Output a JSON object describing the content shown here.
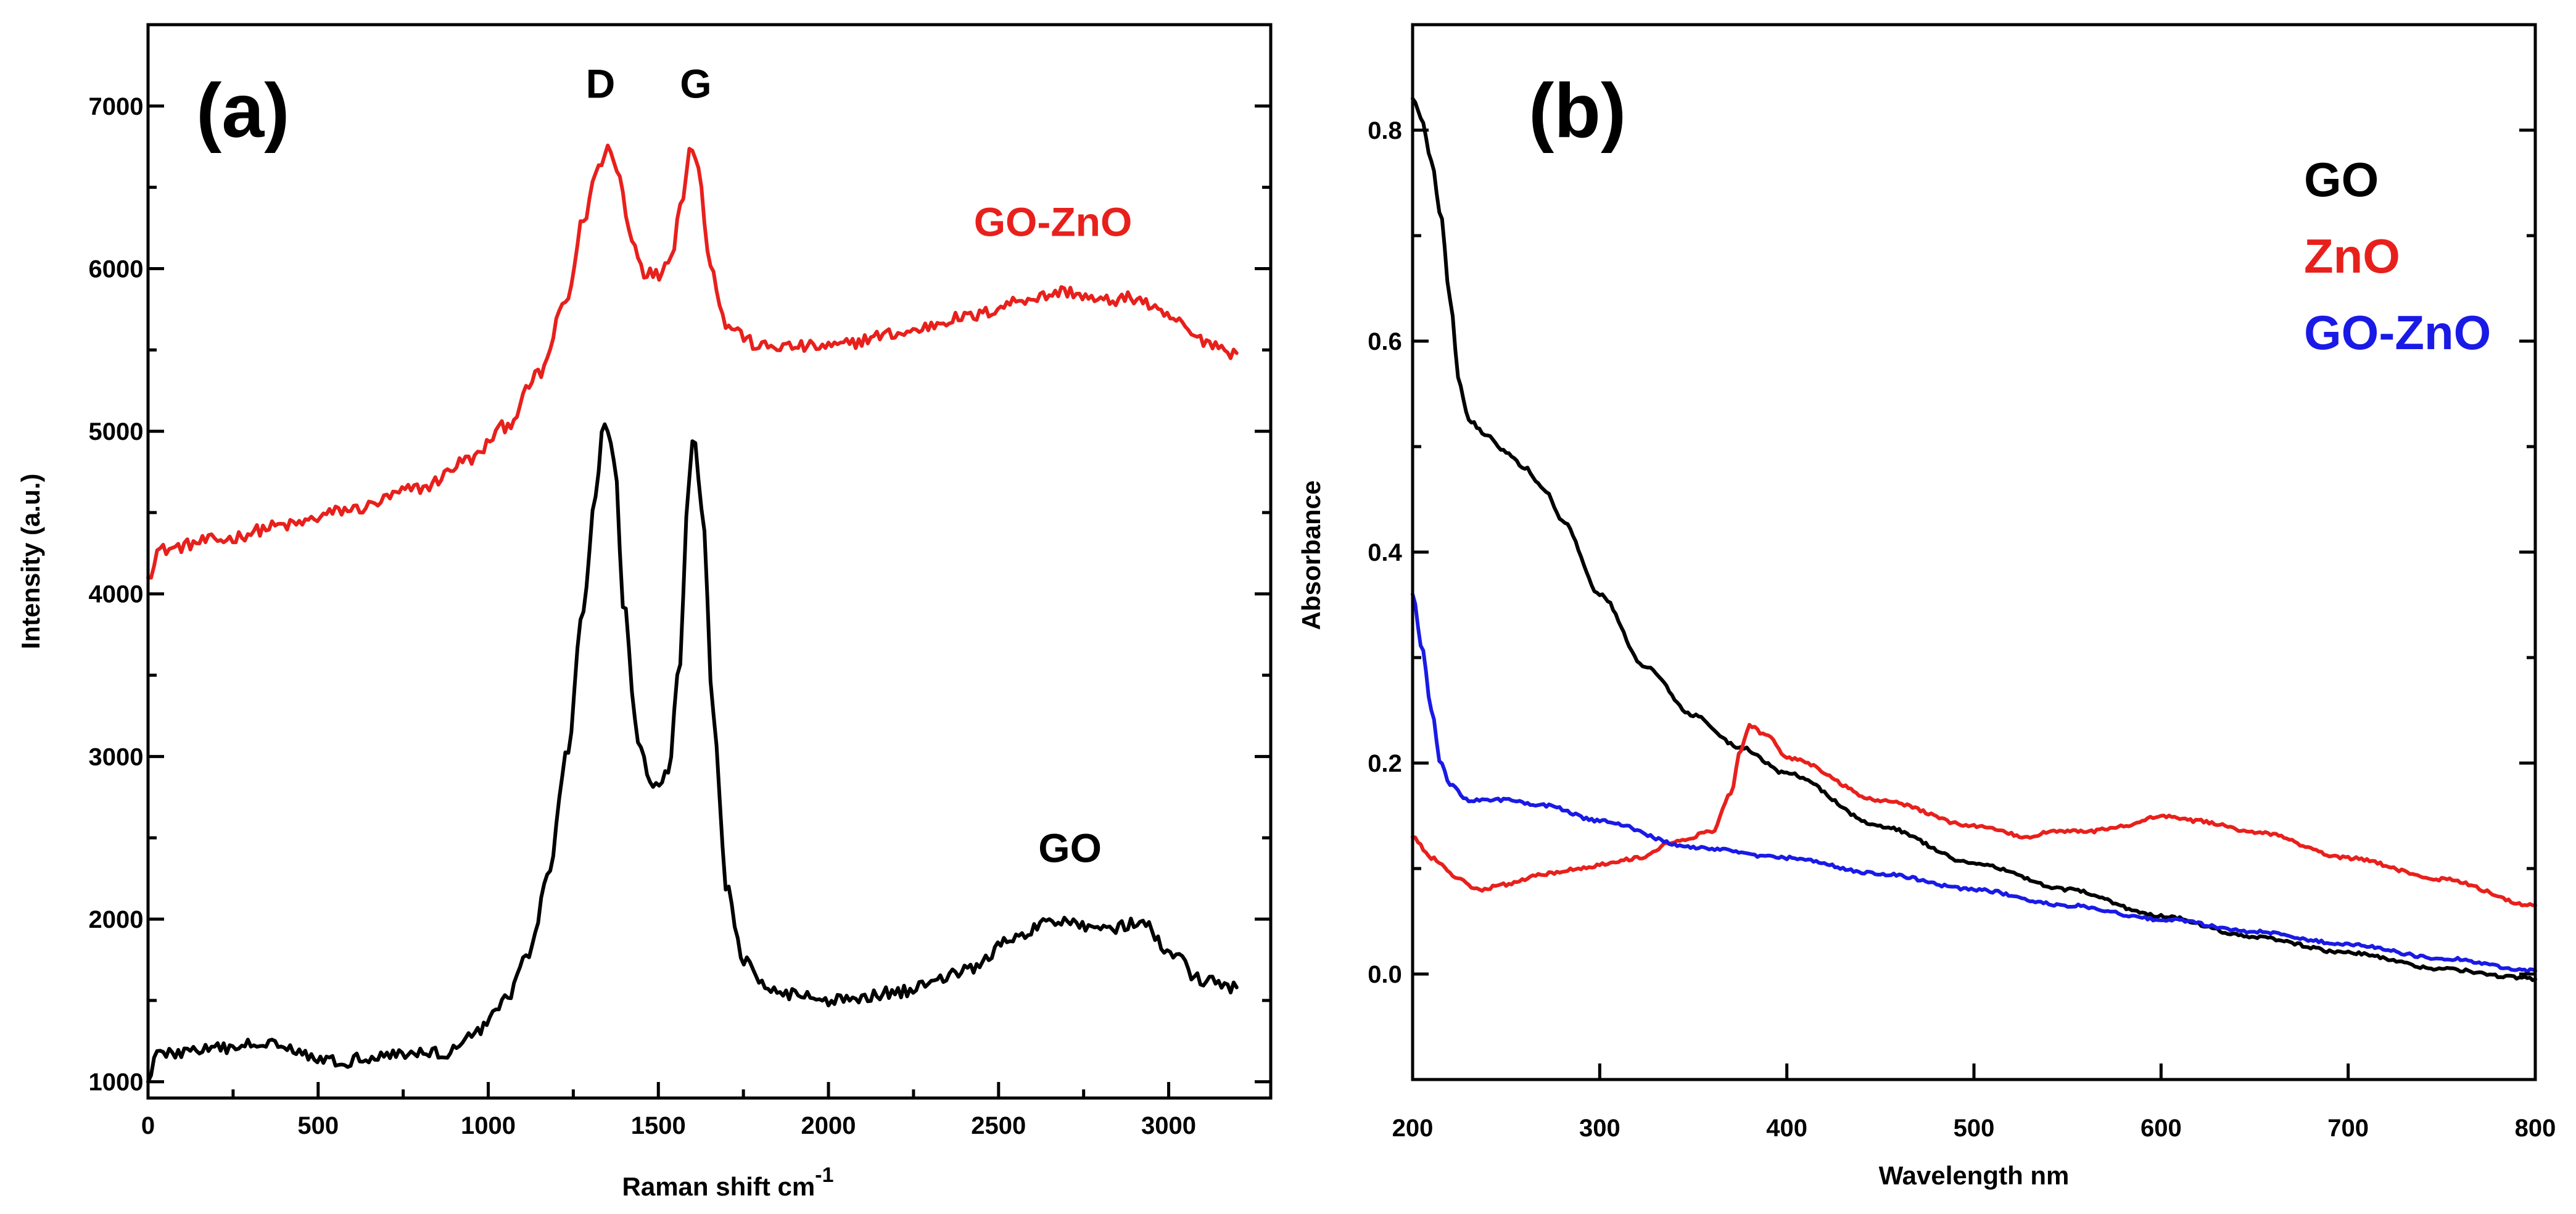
{
  "chart_data": [
    {
      "panel_label": "(a)",
      "type": "line",
      "title": "",
      "xlabel": "Raman shift cm",
      "xlabel_superscript": "-1",
      "ylabel": "Intensity (a.u.)",
      "xlim": [
        0,
        3300
      ],
      "ylim": [
        900,
        7500
      ],
      "xticks": [
        0,
        500,
        1000,
        1500,
        2000,
        2500,
        3000
      ],
      "yticks": [
        1000,
        2000,
        3000,
        4000,
        5000,
        6000,
        7000
      ],
      "noise_amplitude": 38,
      "series": [
        {
          "name": "GO-ZnO",
          "color": "#e8201c",
          "points": [
            [
              0,
              4100
            ],
            [
              30,
              4270
            ],
            [
              200,
              4330
            ],
            [
              400,
              4420
            ],
            [
              600,
              4520
            ],
            [
              800,
              4650
            ],
            [
              950,
              4830
            ],
            [
              1050,
              5030
            ],
            [
              1150,
              5350
            ],
            [
              1230,
              5800
            ],
            [
              1280,
              6300
            ],
            [
              1320,
              6600
            ],
            [
              1350,
              6750
            ],
            [
              1380,
              6600
            ],
            [
              1420,
              6200
            ],
            [
              1460,
              5980
            ],
            [
              1500,
              5960
            ],
            [
              1540,
              6100
            ],
            [
              1570,
              6450
            ],
            [
              1595,
              6750
            ],
            [
              1620,
              6600
            ],
            [
              1650,
              6050
            ],
            [
              1700,
              5650
            ],
            [
              1800,
              5520
            ],
            [
              2000,
              5520
            ],
            [
              2200,
              5600
            ],
            [
              2400,
              5700
            ],
            [
              2600,
              5820
            ],
            [
              2700,
              5860
            ],
            [
              2800,
              5800
            ],
            [
              2900,
              5820
            ],
            [
              3000,
              5700
            ],
            [
              3100,
              5560
            ],
            [
              3200,
              5480
            ]
          ]
        },
        {
          "name": "GO",
          "color": "#000000",
          "points": [
            [
              0,
              1000
            ],
            [
              20,
              1170
            ],
            [
              200,
              1200
            ],
            [
              380,
              1250
            ],
            [
              450,
              1180
            ],
            [
              550,
              1120
            ],
            [
              700,
              1170
            ],
            [
              880,
              1180
            ],
            [
              950,
              1280
            ],
            [
              1050,
              1500
            ],
            [
              1120,
              1800
            ],
            [
              1180,
              2300
            ],
            [
              1230,
              3000
            ],
            [
              1280,
              3900
            ],
            [
              1315,
              4600
            ],
            [
              1340,
              5080
            ],
            [
              1370,
              4850
            ],
            [
              1400,
              3900
            ],
            [
              1440,
              3100
            ],
            [
              1480,
              2800
            ],
            [
              1530,
              2900
            ],
            [
              1560,
              3500
            ],
            [
              1590,
              4700
            ],
            [
              1605,
              4980
            ],
            [
              1630,
              4500
            ],
            [
              1660,
              3300
            ],
            [
              1700,
              2200
            ],
            [
              1750,
              1750
            ],
            [
              1800,
              1600
            ],
            [
              1900,
              1540
            ],
            [
              2000,
              1500
            ],
            [
              2200,
              1550
            ],
            [
              2400,
              1680
            ],
            [
              2550,
              1880
            ],
            [
              2650,
              1980
            ],
            [
              2700,
              2000
            ],
            [
              2780,
              1950
            ],
            [
              2850,
              1950
            ],
            [
              2920,
              1980
            ],
            [
              3000,
              1800
            ],
            [
              3100,
              1620
            ],
            [
              3200,
              1580
            ]
          ]
        }
      ],
      "annotations": [
        {
          "text": "D",
          "x": 1330,
          "y": 7050,
          "color": "#000000"
        },
        {
          "text": "G",
          "x": 1610,
          "y": 7050,
          "color": "#000000"
        },
        {
          "text": "GO-ZnO",
          "x": 2660,
          "y": 6200,
          "color": "#e8201c"
        },
        {
          "text": "GO",
          "x": 2710,
          "y": 2350,
          "color": "#000000"
        }
      ]
    },
    {
      "panel_label": "(b)",
      "type": "line",
      "title": "",
      "xlabel": "Wavelength nm",
      "ylabel": "Absorbance",
      "xlim": [
        200,
        800
      ],
      "ylim": [
        -0.1,
        0.9
      ],
      "xticks": [
        200,
        300,
        400,
        500,
        600,
        700,
        800
      ],
      "yticks": [
        0.0,
        0.2,
        0.4,
        0.6,
        0.8
      ],
      "ytick_labels": [
        "0.0",
        "0.2",
        "0.4",
        "0.6",
        "0.8"
      ],
      "noise_amplitude": 0.0015,
      "series": [
        {
          "name": "GO",
          "color": "#000000",
          "points": [
            [
              200,
              0.83
            ],
            [
              205,
              0.81
            ],
            [
              210,
              0.77
            ],
            [
              215,
              0.72
            ],
            [
              220,
              0.64
            ],
            [
              225,
              0.56
            ],
            [
              230,
              0.525
            ],
            [
              240,
              0.51
            ],
            [
              250,
              0.495
            ],
            [
              260,
              0.48
            ],
            [
              270,
              0.46
            ],
            [
              280,
              0.43
            ],
            [
              300,
              0.36
            ],
            [
              325,
              0.29
            ],
            [
              350,
              0.245
            ],
            [
              375,
              0.215
            ],
            [
              400,
              0.19
            ],
            [
              450,
              0.14
            ],
            [
              500,
              0.105
            ],
            [
              550,
              0.08
            ],
            [
              600,
              0.055
            ],
            [
              650,
              0.035
            ],
            [
              700,
              0.02
            ],
            [
              750,
              0.005
            ],
            [
              790,
              -0.003
            ],
            [
              800,
              -0.005
            ]
          ]
        },
        {
          "name": "ZnO",
          "color": "#e8201c",
          "points": [
            [
              200,
              0.13
            ],
            [
              210,
              0.11
            ],
            [
              225,
              0.09
            ],
            [
              235,
              0.08
            ],
            [
              250,
              0.085
            ],
            [
              270,
              0.095
            ],
            [
              290,
              0.1
            ],
            [
              305,
              0.105
            ],
            [
              320,
              0.11
            ],
            [
              340,
              0.125
            ],
            [
              360,
              0.135
            ],
            [
              370,
              0.17
            ],
            [
              375,
              0.21
            ],
            [
              380,
              0.235
            ],
            [
              390,
              0.225
            ],
            [
              400,
              0.205
            ],
            [
              450,
              0.165
            ],
            [
              500,
              0.14
            ],
            [
              530,
              0.13
            ],
            [
              540,
              0.135
            ],
            [
              560,
              0.135
            ],
            [
              580,
              0.14
            ],
            [
              600,
              0.15
            ],
            [
              620,
              0.145
            ],
            [
              650,
              0.135
            ],
            [
              700,
              0.11
            ],
            [
              750,
              0.09
            ],
            [
              800,
              0.065
            ]
          ]
        },
        {
          "name": "GO-ZnO",
          "color": "#1a1ae6",
          "points": [
            [
              200,
              0.36
            ],
            [
              205,
              0.31
            ],
            [
              210,
              0.25
            ],
            [
              215,
              0.2
            ],
            [
              220,
              0.18
            ],
            [
              230,
              0.165
            ],
            [
              250,
              0.165
            ],
            [
              270,
              0.16
            ],
            [
              300,
              0.145
            ],
            [
              350,
              0.12
            ],
            [
              400,
              0.11
            ],
            [
              450,
              0.095
            ],
            [
              500,
              0.08
            ],
            [
              550,
              0.065
            ],
            [
              600,
              0.052
            ],
            [
              650,
              0.04
            ],
            [
              700,
              0.028
            ],
            [
              750,
              0.015
            ],
            [
              800,
              0.003
            ]
          ]
        }
      ],
      "legend": [
        {
          "text": "GO",
          "color": "#000000"
        },
        {
          "text": "ZnO",
          "color": "#e8201c"
        },
        {
          "text": "GO-ZnO",
          "color": "#1a1ae6"
        }
      ]
    }
  ]
}
